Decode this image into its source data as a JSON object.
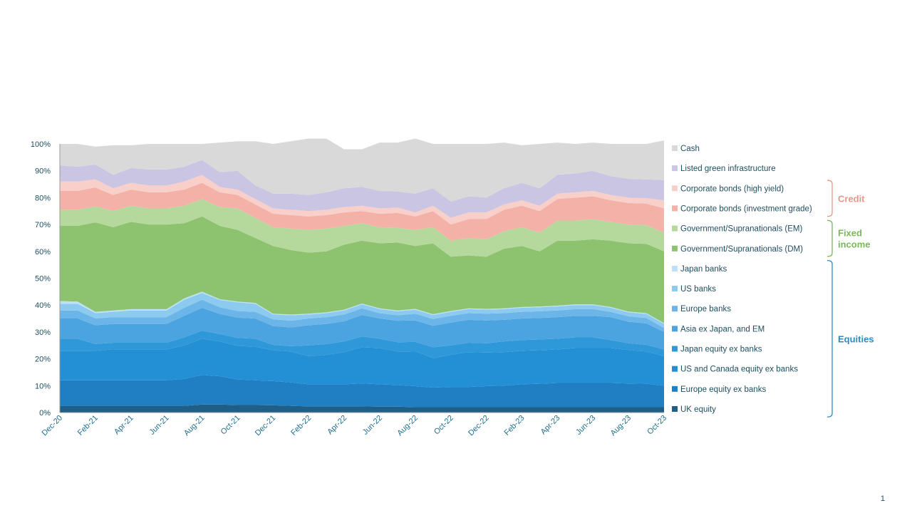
{
  "page": {
    "number": "1"
  },
  "chart_data": {
    "type": "area",
    "stacked": true,
    "title": "",
    "xlabel": "",
    "ylabel": "",
    "ylim": [
      0,
      100
    ],
    "y_ticks": [
      "0%",
      "10%",
      "20%",
      "30%",
      "40%",
      "50%",
      "60%",
      "70%",
      "80%",
      "90%",
      "100%"
    ],
    "x": [
      "Dec-20",
      "Jan-21",
      "Feb-21",
      "Mar-21",
      "Apr-21",
      "May-21",
      "Jun-21",
      "Jul-21",
      "Aug-21",
      "Sep-21",
      "Oct-21",
      "Nov-21",
      "Dec-21",
      "Jan-22",
      "Feb-22",
      "Mar-22",
      "Apr-22",
      "May-22",
      "Jun-22",
      "Jul-22",
      "Aug-22",
      "Sep-22",
      "Oct-22",
      "Nov-22",
      "Dec-22",
      "Jan-23",
      "Feb-23",
      "Mar-23",
      "Apr-23",
      "May-23",
      "Jun-23",
      "Jul-23",
      "Aug-23",
      "Sep-23",
      "Oct-23"
    ],
    "x_tick_labels": [
      "Dec-20",
      "Feb-21",
      "Apr-21",
      "Jun-21",
      "Aug-21",
      "Oct-21",
      "Dec-21",
      "Feb-22",
      "Apr-22",
      "Jun-22",
      "Aug-22",
      "Oct-22",
      "Dec-22",
      "Feb-23",
      "Apr-23",
      "Jun-23",
      "Aug-23",
      "Oct-23"
    ],
    "grid": false,
    "legend_position": "right",
    "series": [
      {
        "name": "UK equity",
        "color": "#1f5f87",
        "values": [
          2.5,
          2.5,
          2.5,
          2.5,
          2.5,
          2.5,
          2.5,
          2.5,
          3.0,
          3.0,
          2.8,
          2.8,
          2.7,
          2.5,
          2.3,
          2.3,
          2.3,
          2.3,
          2.2,
          2.2,
          2.0,
          2.0,
          2.0,
          2.0,
          2.0,
          2.0,
          2.0,
          2.0,
          2.0,
          2.0,
          2.0,
          2.0,
          2.0,
          2.0,
          2.0
        ]
      },
      {
        "name": "Europe equity ex banks",
        "color": "#1f7fc2",
        "values": [
          9.5,
          9.5,
          9.5,
          9.5,
          9.5,
          9.5,
          9.5,
          10.0,
          11.0,
          10.5,
          9.5,
          9.2,
          9.0,
          8.7,
          8.2,
          8.2,
          8.2,
          8.5,
          8.3,
          8.0,
          7.8,
          7.3,
          7.5,
          7.5,
          7.8,
          8.0,
          8.5,
          8.7,
          9.0,
          9.0,
          9.0,
          9.0,
          8.8,
          8.7,
          8.0
        ]
      },
      {
        "name": "US and Canada equity ex banks",
        "color": "#2390d6",
        "values": [
          11.0,
          11.0,
          11.0,
          11.5,
          11.5,
          11.5,
          11.5,
          12.5,
          13.5,
          13.0,
          12.5,
          12.5,
          11.5,
          11.5,
          10.5,
          11.0,
          12.0,
          13.5,
          13.5,
          12.5,
          13.0,
          11.0,
          12.0,
          13.0,
          12.5,
          12.5,
          12.5,
          12.5,
          12.5,
          13.0,
          13.0,
          13.0,
          12.5,
          12.0,
          11.0
        ]
      },
      {
        "name": "Japan equity ex banks",
        "color": "#2f98d9",
        "values": [
          4.5,
          4.5,
          2.5,
          2.5,
          2.5,
          2.5,
          2.5,
          3.0,
          3.0,
          2.7,
          3.0,
          3.0,
          2.0,
          2.0,
          4.0,
          4.0,
          4.0,
          4.0,
          3.5,
          3.5,
          3.5,
          4.0,
          3.5,
          3.5,
          3.5,
          4.0,
          4.0,
          4.0,
          4.0,
          4.0,
          4.0,
          3.0,
          2.5,
          2.5,
          2.5
        ]
      },
      {
        "name": "Asia ex Japan, and EM",
        "color": "#4ba3e0",
        "values": [
          7.5,
          7.5,
          7.0,
          7.0,
          7.0,
          7.0,
          7.0,
          8.0,
          8.5,
          7.5,
          7.5,
          7.5,
          7.0,
          7.0,
          7.5,
          7.5,
          7.5,
          8.0,
          7.5,
          8.0,
          8.0,
          8.0,
          8.5,
          8.5,
          8.5,
          8.0,
          8.0,
          8.0,
          8.0,
          8.0,
          8.0,
          8.5,
          8.0,
          8.0,
          6.5
        ]
      },
      {
        "name": "Europe banks",
        "color": "#6cb5e8",
        "values": [
          3.0,
          3.0,
          2.5,
          2.5,
          2.5,
          2.5,
          2.5,
          3.0,
          3.0,
          2.5,
          2.5,
          2.5,
          2.5,
          2.5,
          2.5,
          2.5,
          2.5,
          2.5,
          2.0,
          2.0,
          2.5,
          2.5,
          2.5,
          2.5,
          2.5,
          2.5,
          2.5,
          2.5,
          2.5,
          2.5,
          2.5,
          2.0,
          2.0,
          2.0,
          1.5
        ]
      },
      {
        "name": "US banks",
        "color": "#8ccaf0",
        "values": [
          2.5,
          2.5,
          2.0,
          2.0,
          2.5,
          2.5,
          2.5,
          3.0,
          2.5,
          2.7,
          3.2,
          3.0,
          1.8,
          2.0,
          1.5,
          1.5,
          1.5,
          1.5,
          1.5,
          1.5,
          1.5,
          1.5,
          1.5,
          1.5,
          1.5,
          1.5,
          1.5,
          1.5,
          1.5,
          1.5,
          1.5,
          1.5,
          1.5,
          1.5,
          1.5
        ]
      },
      {
        "name": "Japan banks",
        "color": "#bfe0f6",
        "values": [
          1.0,
          0.8,
          0.5,
          0.5,
          0.5,
          0.5,
          0.5,
          0.5,
          0.5,
          0.3,
          0.3,
          0.3,
          0.3,
          0.3,
          0.3,
          0.3,
          0.3,
          0.3,
          0.3,
          0.3,
          0.3,
          0.3,
          0.3,
          0.3,
          0.3,
          0.3,
          0.3,
          0.3,
          0.3,
          0.3,
          0.3,
          0.3,
          0.3,
          0.3,
          0.3
        ]
      },
      {
        "name": "Government/Supranationals (DM)",
        "color": "#8dc26f",
        "values": [
          28.0,
          28.2,
          33.3,
          31.0,
          32.5,
          31.5,
          31.5,
          28.0,
          28.0,
          27.3,
          26.7,
          24.2,
          25.2,
          24.0,
          22.7,
          22.7,
          24.2,
          23.4,
          24.2,
          25.3,
          23.4,
          26.4,
          20.2,
          19.7,
          19.4,
          22.2,
          22.7,
          20.5,
          24.2,
          23.7,
          24.2,
          24.7,
          25.4,
          25.8,
          26.7
        ]
      },
      {
        "name": "Government/Supranationals (EM)",
        "color": "#b5d99c",
        "values": [
          6.0,
          6.0,
          6.0,
          6.0,
          6.0,
          6.0,
          6.0,
          6.5,
          6.5,
          7.0,
          8.0,
          7.5,
          7.0,
          8.0,
          8.5,
          8.5,
          7.0,
          6.5,
          6.0,
          5.5,
          6.0,
          6.0,
          6.0,
          6.5,
          6.5,
          6.5,
          7.0,
          7.0,
          7.5,
          7.5,
          7.5,
          7.0,
          7.0,
          7.0,
          7.0
        ]
      },
      {
        "name": "Corporate bonds (investment grade)",
        "color": "#f3b1a8",
        "values": [
          7.0,
          7.0,
          7.0,
          6.0,
          6.0,
          6.0,
          6.0,
          6.0,
          6.0,
          5.5,
          5.0,
          5.0,
          5.0,
          5.0,
          5.0,
          5.0,
          5.0,
          4.5,
          5.0,
          5.5,
          5.0,
          6.0,
          6.0,
          7.0,
          7.5,
          8.0,
          8.0,
          8.0,
          8.0,
          8.5,
          8.5,
          8.0,
          8.0,
          8.0,
          9.0
        ]
      },
      {
        "name": "Corporate bonds (high yield)",
        "color": "#f8cfc9",
        "values": [
          3.5,
          3.5,
          3.0,
          2.5,
          2.5,
          2.5,
          2.5,
          3.0,
          3.0,
          2.0,
          2.0,
          2.0,
          2.0,
          2.0,
          2.0,
          2.0,
          2.0,
          2.0,
          2.0,
          2.0,
          1.5,
          2.0,
          2.5,
          2.5,
          2.5,
          2.0,
          2.0,
          2.0,
          2.0,
          2.0,
          2.0,
          2.0,
          2.0,
          2.0,
          3.0
        ]
      },
      {
        "name": "Listed green infrastructure",
        "color": "#c9c5e3",
        "values": [
          6.0,
          5.5,
          5.5,
          5.0,
          5.5,
          6.0,
          6.0,
          5.5,
          5.5,
          5.5,
          7.0,
          5.0,
          5.5,
          6.0,
          6.0,
          6.5,
          7.0,
          7.0,
          6.5,
          6.0,
          7.0,
          6.5,
          6.0,
          6.0,
          5.5,
          6.0,
          6.5,
          6.5,
          7.0,
          7.0,
          7.5,
          7.0,
          7.0,
          7.0,
          7.5
        ]
      },
      {
        "name": "Cash",
        "color": "#d9d9d9",
        "values": [
          8.0,
          8.5,
          6.7,
          11.0,
          8.5,
          9.5,
          9.5,
          8.5,
          6.0,
          11.0,
          11.0,
          16.5,
          18.5,
          19.5,
          21.0,
          20.0,
          14.5,
          14.0,
          18.0,
          18.2,
          20.5,
          16.5,
          21.5,
          19.5,
          20.0,
          17.0,
          14.0,
          16.5,
          12.0,
          11.0,
          10.5,
          12.0,
          13.0,
          13.2,
          14.8
        ]
      }
    ],
    "legend_groups": [
      {
        "label": "Credit",
        "color": "#e9958a",
        "from": "Corporate bonds (investment grade)",
        "to": "Corporate bonds (high yield)"
      },
      {
        "label": "Fixed\nincome",
        "label_lines": [
          "Fixed",
          "income"
        ],
        "color": "#7ab85c",
        "from": "Government/Supranationals (DM)",
        "to": "Government/Supranationals (EM)"
      },
      {
        "label": "Equities",
        "color": "#2d8bc4",
        "from": "UK equity",
        "to": "Japan banks"
      }
    ]
  }
}
